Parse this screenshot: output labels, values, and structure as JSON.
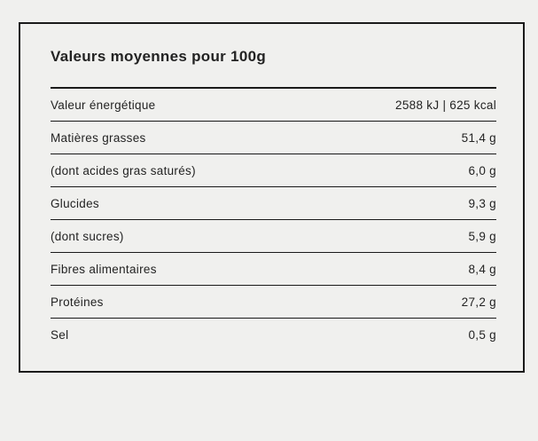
{
  "card": {
    "title": "Valeurs moyennes pour 100g"
  },
  "table": {
    "rows": [
      {
        "label": "Valeur énergétique",
        "value": "2588 kJ | 625 kcal"
      },
      {
        "label": "Matières grasses",
        "value": "51,4 g"
      },
      {
        "label": "(dont acides gras saturés)",
        "value": "6,0 g"
      },
      {
        "label": "Glucides",
        "value": "9,3 g"
      },
      {
        "label": "(dont sucres)",
        "value": "5,9 g"
      },
      {
        "label": "Fibres alimentaires",
        "value": "8,4 g"
      },
      {
        "label": "Protéines",
        "value": "27,2 g"
      },
      {
        "label": "Sel",
        "value": "0,5 g"
      }
    ]
  },
  "colors": {
    "background": "#f0f0ee",
    "line": "#1a1a1a",
    "text": "#232323"
  }
}
